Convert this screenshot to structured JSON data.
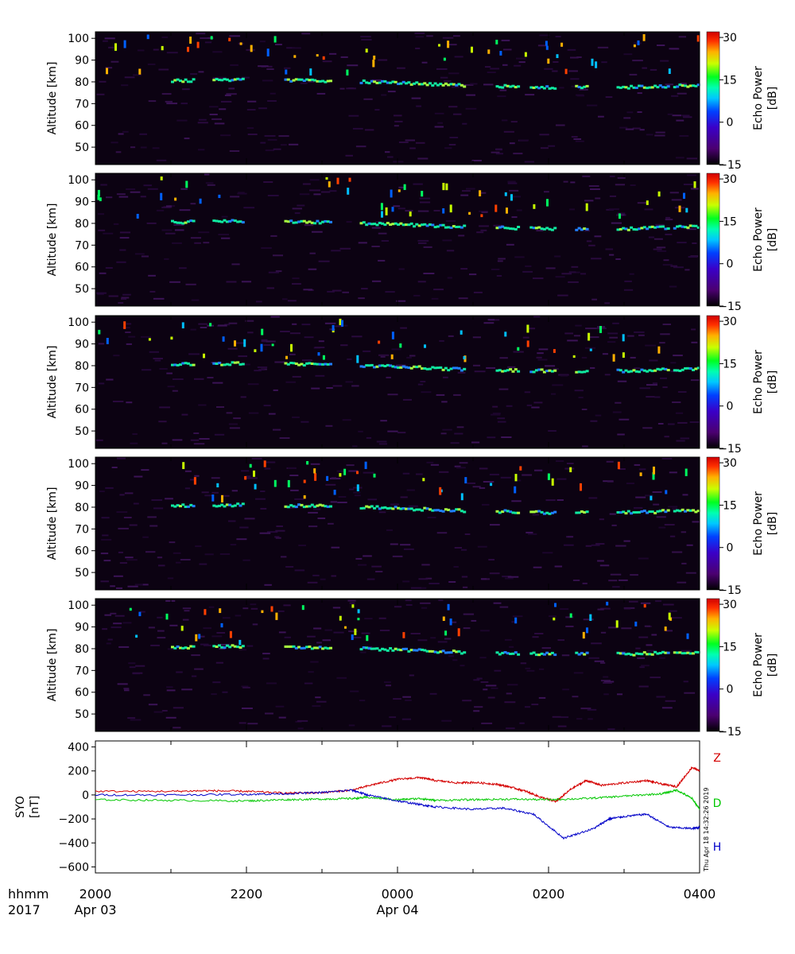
{
  "chart_data": {
    "type": "heatmap",
    "panels": [
      {
        "id": 1,
        "ylabel": "Altitude [km]",
        "yticks": [
          "100",
          "90",
          "80",
          "70",
          "60",
          "50"
        ],
        "cbar_label": "Echo Power [dB]",
        "cbar_ticks": [
          "30",
          "15",
          "0",
          "−15"
        ]
      },
      {
        "id": 2,
        "ylabel": "Altitude [km]",
        "yticks": [
          "100",
          "90",
          "80",
          "70",
          "60",
          "50"
        ],
        "cbar_label": "Echo Power [dB]",
        "cbar_ticks": [
          "30",
          "15",
          "0",
          "−15"
        ]
      },
      {
        "id": 3,
        "ylabel": "Altitude [km]",
        "yticks": [
          "100",
          "90",
          "80",
          "70",
          "60",
          "50"
        ],
        "cbar_label": "Echo Power [dB]",
        "cbar_ticks": [
          "30",
          "15",
          "0",
          "−15"
        ]
      },
      {
        "id": 4,
        "ylabel": "Altitude [km]",
        "yticks": [
          "100",
          "90",
          "80",
          "70",
          "60",
          "50"
        ],
        "cbar_label": "Echo Power [dB]",
        "cbar_ticks": [
          "30",
          "15",
          "0",
          "−15"
        ]
      },
      {
        "id": 5,
        "ylabel": "Altitude [km]",
        "yticks": [
          "100",
          "90",
          "80",
          "70",
          "60",
          "50"
        ],
        "cbar_label": "Echo Power [dB]",
        "cbar_ticks": [
          "30",
          "15",
          "0",
          "−15"
        ]
      }
    ],
    "altitude_range_km": [
      42,
      103
    ],
    "echo_power_range_db": [
      -15,
      32
    ],
    "echo_layer": [
      {
        "time": "2100",
        "alt": 80.5
      },
      {
        "time": "2150",
        "alt": 81.0
      },
      {
        "time": "2300",
        "alt": 80.5
      },
      {
        "time": "0000",
        "alt": 79.5
      },
      {
        "time": "0040",
        "alt": 78.5
      },
      {
        "time": "0120",
        "alt": 78.0
      },
      {
        "time": "0200",
        "alt": 77.5
      },
      {
        "time": "0300",
        "alt": 77.5
      },
      {
        "time": "0400",
        "alt": 78.5
      }
    ],
    "magnetometer": {
      "ylabel": "SYO [nT]",
      "yticks": [
        "400",
        "200",
        "0",
        "−200",
        "−400",
        "−600"
      ],
      "ylim": [
        -650,
        450
      ],
      "series": [
        {
          "name": "Z",
          "color": "#d40000",
          "time_h": [
            0,
            1,
            1.5,
            2,
            2.5,
            3,
            3.4,
            3.7,
            4.0,
            4.3,
            4.5,
            4.8,
            5.0,
            5.3,
            5.5,
            5.7,
            5.9,
            6.1,
            6.3,
            6.5,
            6.7,
            7.0,
            7.3,
            7.5,
            7.7,
            7.9,
            8.0
          ],
          "values": [
            30,
            30,
            35,
            30,
            15,
            20,
            40,
            90,
            130,
            145,
            120,
            100,
            105,
            90,
            65,
            30,
            -20,
            -55,
            50,
            120,
            80,
            100,
            120,
            90,
            70,
            230,
            200
          ]
        },
        {
          "name": "D",
          "color": "#00c800",
          "time_h": [
            0,
            1,
            2,
            2.5,
            3,
            3.4,
            3.6,
            4.0,
            4.3,
            4.5,
            5.0,
            5.5,
            6.0,
            6.5,
            7.0,
            7.5,
            7.7,
            7.9,
            8.0
          ],
          "values": [
            -40,
            -45,
            -50,
            -40,
            -35,
            -30,
            -20,
            -40,
            -30,
            -45,
            -40,
            -35,
            -40,
            -30,
            -10,
            10,
            40,
            -30,
            -120
          ]
        },
        {
          "name": "H",
          "color": "#0000c8",
          "time_h": [
            0,
            1,
            2,
            2.5,
            3,
            3.4,
            3.6,
            4.0,
            4.3,
            4.5,
            5.0,
            5.4,
            5.8,
            6.2,
            6.6,
            6.8,
            7.0,
            7.3,
            7.6,
            7.9,
            8.0
          ],
          "values": [
            0,
            0,
            5,
            10,
            20,
            40,
            0,
            -50,
            -80,
            -100,
            -120,
            -110,
            -160,
            -360,
            -280,
            -200,
            -180,
            -160,
            -270,
            -280,
            -270
          ]
        }
      ]
    },
    "x_axis": {
      "ticks": [
        "2000",
        "2200",
        "0000",
        "0200",
        "0400"
      ],
      "date_labels": [
        "Apr 03",
        "",
        "Apr 04",
        "",
        ""
      ],
      "left_labels": [
        "hhmm",
        "2017"
      ]
    },
    "stamp": "Thu Apr 18 14:32:26 2019"
  }
}
